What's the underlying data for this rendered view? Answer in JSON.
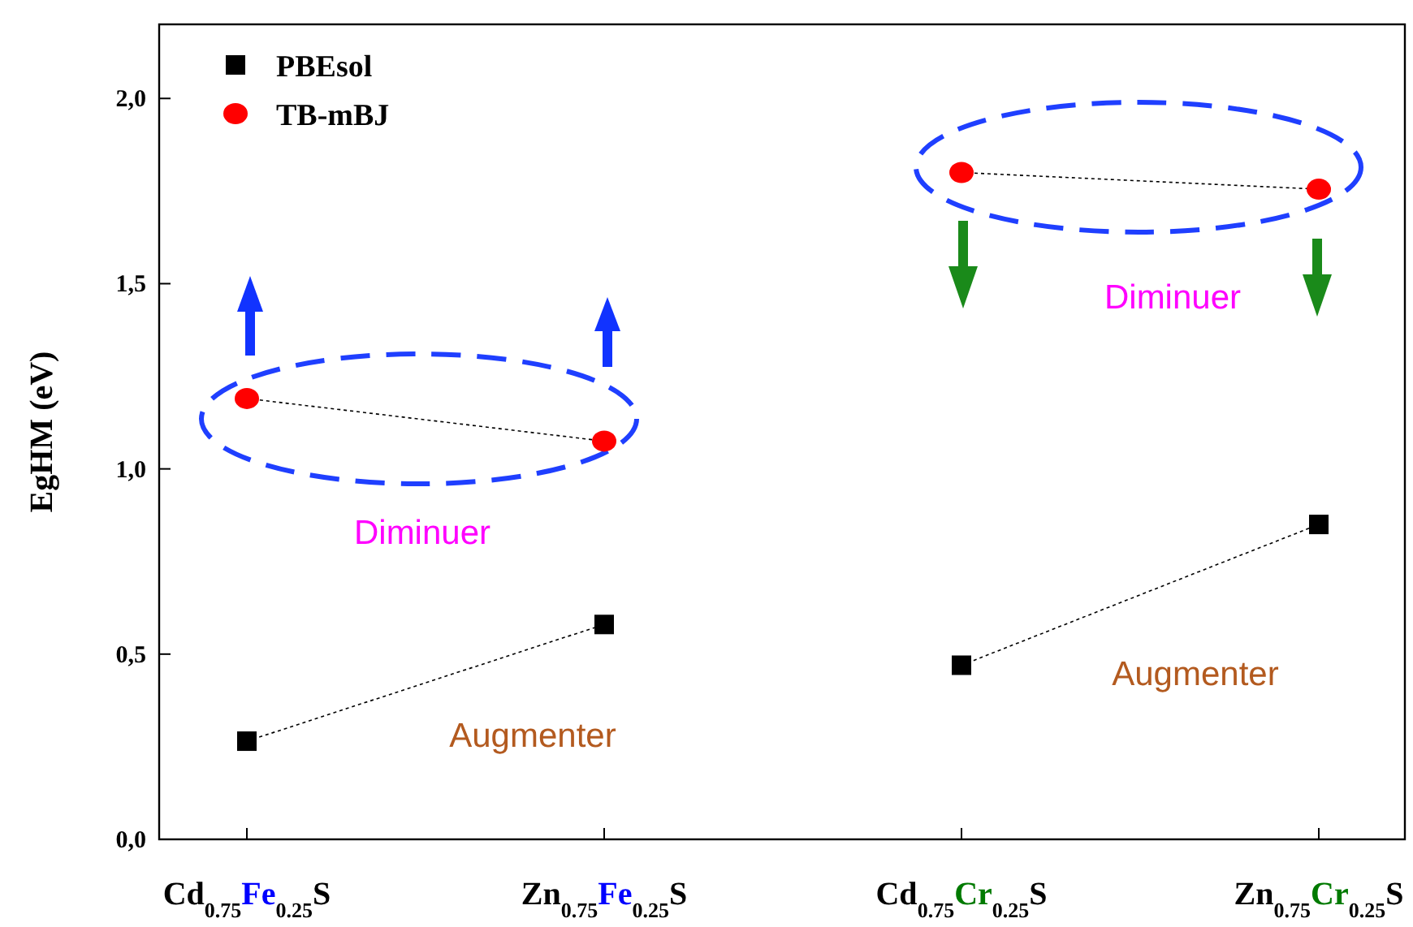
{
  "chart_data": {
    "type": "line",
    "ylabel": "EgHM (eV)",
    "categories": [
      "Cd$_{0.75}$Fe$_{0.25}$S",
      "Zn$_{0.75}$Fe$_{0.25}$S",
      "Cd$_{0.75}$Cr$_{0.25}$S",
      "Zn$_{0.75}$Cr$_{0.25}$S"
    ],
    "series": [
      {
        "name": "PBEsol",
        "color": "#000000",
        "marker": "square",
        "values": [
          0.265,
          0.58,
          null,
          null
        ]
      },
      {
        "name": "TB-mBJ",
        "color": "#ff0000",
        "marker": "circle",
        "values": [
          1.19,
          1.075,
          null,
          null
        ]
      },
      {
        "color": "#000000",
        "marker": "square",
        "values": [
          null,
          null,
          0.47,
          0.85
        ]
      },
      {
        "color": "#ff0000",
        "marker": "circle",
        "values": [
          null,
          null,
          1.8,
          1.755
        ]
      }
    ],
    "line_style": "dotted",
    "legend": "top left",
    "grid": false,
    "ylim": [
      0,
      2.2
    ],
    "yticks": [
      {
        "value": 0,
        "label": "0,0"
      },
      {
        "value": 0.5,
        "label": "0,5"
      },
      {
        "value": 1,
        "label": "1,0"
      },
      {
        "value": 1.5,
        "label": "1,5"
      },
      {
        "value": 2,
        "label": "2,0"
      }
    ],
    "annotations": [
      "Diminuer",
      "Augmenter",
      "Diminuer",
      "Augmenter"
    ]
  }
}
